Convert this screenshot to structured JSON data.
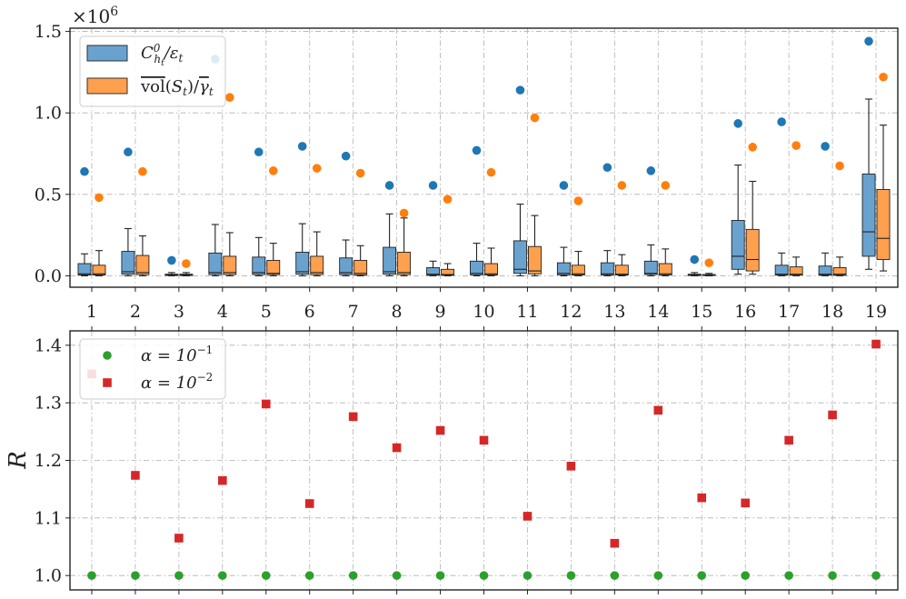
{
  "chart_data": [
    {
      "type": "box",
      "scale_label": "×10^6",
      "ylim": [
        -0.07,
        1.52
      ],
      "yticks": [
        0.0,
        0.5,
        1.0,
        1.5
      ],
      "ytick_labels": [
        "0.0",
        "0.5",
        "1.0",
        "1.5"
      ],
      "categories": [
        "1",
        "2",
        "3",
        "4",
        "5",
        "6",
        "7",
        "8",
        "9",
        "10",
        "11",
        "12",
        "13",
        "14",
        "15",
        "16",
        "17",
        "18",
        "19"
      ],
      "legend": {
        "location": "top-left",
        "entries": [
          {
            "label": "C⁰_{h_t}/ε_t",
            "color": "#1f77b4"
          },
          {
            "label": "vol(S_t)/γ_t",
            "color": "#ff7f0e"
          }
        ]
      },
      "series": [
        {
          "name": "C⁰_{h_t}/ε_t",
          "box_color": "#6aa2cf",
          "point_color": "#1f77b4",
          "boxes": [
            {
              "whislo": 0.0,
              "q1": 0.005,
              "med": 0.012,
              "q3": 0.075,
              "whishi": 0.135
            },
            {
              "whislo": 0.0,
              "q1": 0.01,
              "med": 0.025,
              "q3": 0.15,
              "whishi": 0.29
            },
            {
              "whislo": 0.0,
              "q1": 0.002,
              "med": 0.005,
              "q3": 0.01,
              "whishi": 0.02
            },
            {
              "whislo": 0.0,
              "q1": 0.008,
              "med": 0.02,
              "q3": 0.14,
              "whishi": 0.315
            },
            {
              "whislo": 0.0,
              "q1": 0.008,
              "med": 0.02,
              "q3": 0.115,
              "whishi": 0.235
            },
            {
              "whislo": 0.0,
              "q1": 0.01,
              "med": 0.025,
              "q3": 0.145,
              "whishi": 0.32
            },
            {
              "whislo": 0.0,
              "q1": 0.008,
              "med": 0.02,
              "q3": 0.11,
              "whishi": 0.22
            },
            {
              "whislo": 0.0,
              "q1": 0.01,
              "med": 0.025,
              "q3": 0.175,
              "whishi": 0.38
            },
            {
              "whislo": 0.0,
              "q1": 0.004,
              "med": 0.01,
              "q3": 0.05,
              "whishi": 0.09
            },
            {
              "whislo": 0.0,
              "q1": 0.006,
              "med": 0.015,
              "q3": 0.09,
              "whishi": 0.2
            },
            {
              "whislo": 0.0,
              "q1": 0.015,
              "med": 0.04,
              "q3": 0.215,
              "whishi": 0.44
            },
            {
              "whislo": 0.0,
              "q1": 0.006,
              "med": 0.015,
              "q3": 0.08,
              "whishi": 0.175
            },
            {
              "whislo": 0.0,
              "q1": 0.006,
              "med": 0.012,
              "q3": 0.08,
              "whishi": 0.155
            },
            {
              "whislo": 0.0,
              "q1": 0.008,
              "med": 0.015,
              "q3": 0.09,
              "whishi": 0.19
            },
            {
              "whislo": 0.0,
              "q1": 0.002,
              "med": 0.005,
              "q3": 0.01,
              "whishi": 0.02
            },
            {
              "whislo": 0.01,
              "q1": 0.04,
              "med": 0.12,
              "q3": 0.34,
              "whishi": 0.68
            },
            {
              "whislo": 0.0,
              "q1": 0.004,
              "med": 0.01,
              "q3": 0.065,
              "whishi": 0.14
            },
            {
              "whislo": 0.0,
              "q1": 0.004,
              "med": 0.01,
              "q3": 0.06,
              "whishi": 0.14
            },
            {
              "whislo": 0.04,
              "q1": 0.12,
              "med": 0.27,
              "q3": 0.625,
              "whishi": 1.085
            }
          ],
          "points": [
            0.64,
            0.76,
            0.095,
            1.33,
            0.76,
            0.795,
            0.735,
            0.555,
            0.555,
            0.77,
            1.14,
            0.555,
            0.665,
            0.645,
            0.1,
            0.935,
            0.945,
            0.795,
            1.44
          ]
        },
        {
          "name": "vol(S_t)/γ_t",
          "box_color": "#ffa04f",
          "point_color": "#ff7f0e",
          "boxes": [
            {
              "whislo": 0.0,
              "q1": 0.005,
              "med": 0.012,
              "q3": 0.065,
              "whishi": 0.155
            },
            {
              "whislo": 0.0,
              "q1": 0.008,
              "med": 0.02,
              "q3": 0.125,
              "whishi": 0.245
            },
            {
              "whislo": 0.0,
              "q1": 0.002,
              "med": 0.005,
              "q3": 0.01,
              "whishi": 0.02
            },
            {
              "whislo": 0.0,
              "q1": 0.008,
              "med": 0.02,
              "q3": 0.12,
              "whishi": 0.265
            },
            {
              "whislo": 0.0,
              "q1": 0.008,
              "med": 0.015,
              "q3": 0.095,
              "whishi": 0.2
            },
            {
              "whislo": 0.0,
              "q1": 0.008,
              "med": 0.02,
              "q3": 0.12,
              "whishi": 0.27
            },
            {
              "whislo": 0.0,
              "q1": 0.006,
              "med": 0.015,
              "q3": 0.095,
              "whishi": 0.185
            },
            {
              "whislo": 0.0,
              "q1": 0.008,
              "med": 0.02,
              "q3": 0.145,
              "whishi": 0.355
            },
            {
              "whislo": 0.0,
              "q1": 0.004,
              "med": 0.008,
              "q3": 0.04,
              "whishi": 0.075
            },
            {
              "whislo": 0.0,
              "q1": 0.005,
              "med": 0.012,
              "q3": 0.075,
              "whishi": 0.17
            },
            {
              "whislo": 0.0,
              "q1": 0.012,
              "med": 0.03,
              "q3": 0.18,
              "whishi": 0.37
            },
            {
              "whislo": 0.0,
              "q1": 0.005,
              "med": 0.012,
              "q3": 0.065,
              "whishi": 0.15
            },
            {
              "whislo": 0.0,
              "q1": 0.005,
              "med": 0.01,
              "q3": 0.065,
              "whishi": 0.13
            },
            {
              "whislo": 0.0,
              "q1": 0.006,
              "med": 0.012,
              "q3": 0.075,
              "whishi": 0.165
            },
            {
              "whislo": 0.0,
              "q1": 0.002,
              "med": 0.004,
              "q3": 0.008,
              "whishi": 0.015
            },
            {
              "whislo": 0.01,
              "q1": 0.03,
              "med": 0.1,
              "q3": 0.285,
              "whishi": 0.58
            },
            {
              "whislo": 0.0,
              "q1": 0.004,
              "med": 0.01,
              "q3": 0.055,
              "whishi": 0.115
            },
            {
              "whislo": 0.0,
              "q1": 0.004,
              "med": 0.01,
              "q3": 0.05,
              "whishi": 0.115
            },
            {
              "whislo": 0.03,
              "q1": 0.1,
              "med": 0.23,
              "q3": 0.53,
              "whishi": 0.925
            }
          ],
          "points": [
            0.48,
            0.64,
            0.075,
            1.095,
            0.645,
            0.66,
            0.63,
            0.385,
            0.47,
            0.635,
            0.97,
            0.46,
            0.555,
            0.555,
            0.08,
            0.79,
            0.8,
            0.675,
            1.22
          ]
        }
      ]
    },
    {
      "type": "scatter",
      "ylabel": "R",
      "ylim": [
        0.975,
        1.425
      ],
      "yticks": [
        1.0,
        1.1,
        1.2,
        1.3,
        1.4
      ],
      "ytick_labels": [
        "1.0",
        "1.1",
        "1.2",
        "1.3",
        "1.4"
      ],
      "categories": [
        "1",
        "2",
        "3",
        "4",
        "5",
        "6",
        "7",
        "8",
        "9",
        "10",
        "11",
        "12",
        "13",
        "14",
        "15",
        "16",
        "17",
        "18",
        "19"
      ],
      "legend": {
        "location": "top-left",
        "entries": [
          {
            "label": "α = 10^-1",
            "color": "#2ca02c",
            "marker": "circle"
          },
          {
            "label": "α = 10^-2",
            "color": "#d62728",
            "marker": "square"
          }
        ]
      },
      "series": [
        {
          "name": "α = 10^-1",
          "marker": "circle",
          "color": "#2ca02c",
          "values": [
            1.0,
            1.0,
            1.0,
            1.0,
            1.0,
            1.0,
            1.0,
            1.0,
            1.0,
            1.0,
            1.0,
            1.0,
            1.0,
            1.0,
            1.0,
            1.0,
            1.0,
            1.0,
            1.0
          ]
        },
        {
          "name": "α = 10^-2",
          "marker": "square",
          "color": "#d62728",
          "values": [
            1.35,
            1.174,
            1.065,
            1.165,
            1.298,
            1.125,
            1.276,
            1.222,
            1.252,
            1.235,
            1.103,
            1.19,
            1.056,
            1.287,
            1.135,
            1.126,
            1.235,
            1.279,
            1.402
          ]
        }
      ]
    }
  ]
}
